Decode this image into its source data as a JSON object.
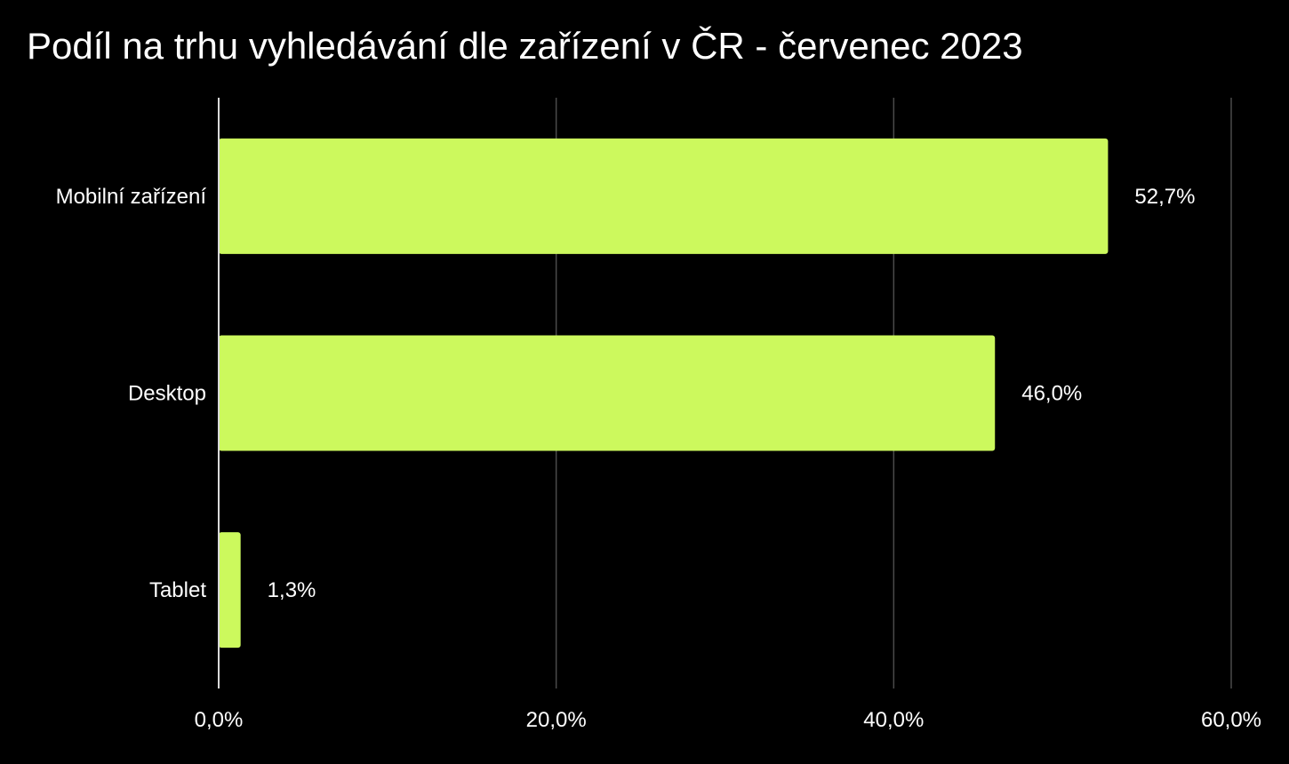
{
  "chart_data": {
    "type": "bar",
    "orientation": "horizontal",
    "title": "Podíl na trhu vyhledávání dle zařízení v ČR - červenec 2023",
    "xlabel": "",
    "ylabel": "",
    "categories": [
      "Mobilní zařízení",
      "Desktop",
      "Tablet"
    ],
    "values": [
      52.7,
      46.0,
      1.3
    ],
    "data_labels": [
      "52,7%",
      "46,0%",
      "1,3%"
    ],
    "xlim": [
      0,
      60
    ],
    "x_ticks": [
      0,
      20,
      40,
      60
    ],
    "x_tick_labels": [
      "0,0%",
      "20,0%",
      "40,0%",
      "60,0%"
    ],
    "grid": "vertical",
    "legend": "none",
    "colors": {
      "background": "#000000",
      "bar": "#ccf95d",
      "grid": "#4a4a4a",
      "axis": "#d9d9d9",
      "text": "#ffffff"
    }
  }
}
